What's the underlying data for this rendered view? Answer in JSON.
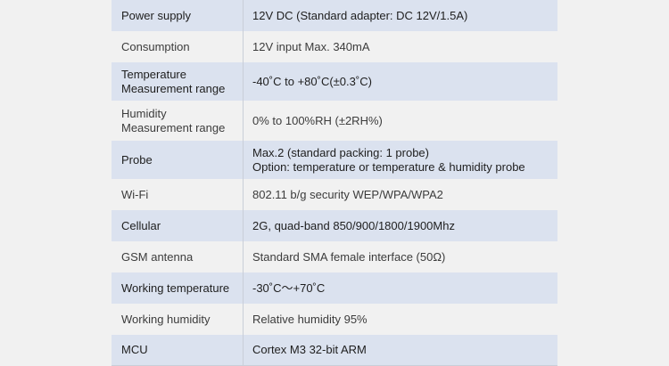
{
  "table": {
    "rows": [
      [
        [
          "Power supply"
        ],
        [
          "12V DC (Standard adapter: DC 12V/1.5A)"
        ]
      ],
      [
        [
          "Consumption"
        ],
        [
          "12V input  Max. 340mA"
        ]
      ],
      [
        [
          "Temperature",
          "Measurement range"
        ],
        [
          "-40˚C to +80˚C(±0.3˚C)"
        ]
      ],
      [
        [
          "Humidity",
          "Measurement range"
        ],
        [
          "0% to 100%RH (±2RH%)"
        ]
      ],
      [
        [
          "Probe"
        ],
        [
          "Max.2 (standard  packing: 1 probe)",
          "Option: temperature or temperature & humidity probe"
        ]
      ],
      [
        [
          "Wi-Fi"
        ],
        [
          "802.11 b/g security WEP/WPA/WPA2"
        ]
      ],
      [
        [
          "Cellular"
        ],
        [
          "2G, quad-band 850/900/1800/1900Mhz"
        ]
      ],
      [
        [
          "GSM antenna"
        ],
        [
          "Standard SMA female interface (50Ω)"
        ]
      ],
      [
        [
          "Working temperature"
        ],
        [
          "-30˚C～+70˚C"
        ]
      ],
      [
        [
          "Working humidity"
        ],
        [
          "Relative humidity 95%"
        ]
      ],
      [
        [
          "MCU"
        ],
        [
          "Cortex M3 32-bit ARM"
        ]
      ]
    ]
  }
}
